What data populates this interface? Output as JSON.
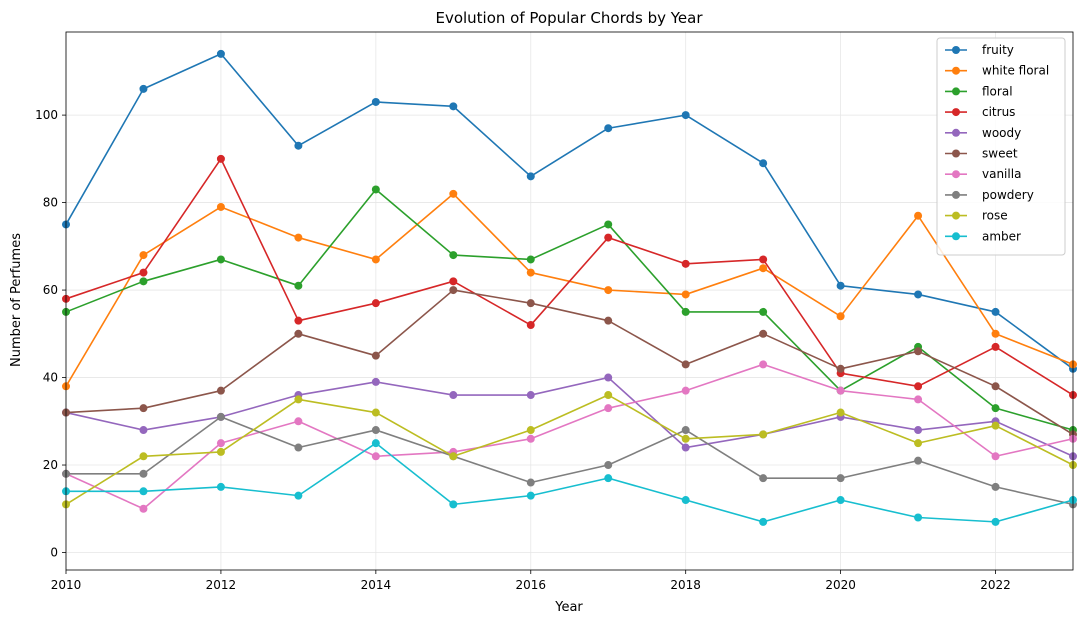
{
  "chart_data": {
    "type": "line",
    "title": "Evolution of Popular Chords by Year",
    "xlabel": "Year",
    "ylabel": "Number of Perfumes",
    "x": [
      2010,
      2011,
      2012,
      2013,
      2014,
      2015,
      2016,
      2017,
      2018,
      2019,
      2020,
      2021,
      2022,
      2023
    ],
    "xlim": [
      2010,
      2023
    ],
    "ylim": [
      -4,
      119
    ],
    "xticks": [
      2010,
      2012,
      2014,
      2016,
      2018,
      2020,
      2022
    ],
    "yticks": [
      0,
      20,
      40,
      60,
      80,
      100
    ],
    "grid": true,
    "legend_position": "top-right",
    "series": [
      {
        "name": "fruity",
        "color": "#1f77b4",
        "values": [
          75,
          106,
          114,
          93,
          103,
          102,
          86,
          97,
          100,
          89,
          61,
          59,
          55,
          42
        ]
      },
      {
        "name": "white floral",
        "color": "#ff7f0e",
        "values": [
          38,
          68,
          79,
          72,
          67,
          82,
          64,
          60,
          59,
          65,
          54,
          77,
          50,
          43
        ]
      },
      {
        "name": "floral",
        "color": "#2ca02c",
        "values": [
          55,
          62,
          67,
          61,
          83,
          68,
          67,
          75,
          55,
          55,
          37,
          47,
          33,
          28
        ]
      },
      {
        "name": "citrus",
        "color": "#d62728",
        "values": [
          58,
          64,
          90,
          53,
          57,
          62,
          52,
          72,
          66,
          67,
          41,
          38,
          47,
          36
        ]
      },
      {
        "name": "woody",
        "color": "#9467bd",
        "values": [
          32,
          28,
          31,
          36,
          39,
          36,
          36,
          40,
          24,
          27,
          31,
          28,
          30,
          22
        ]
      },
      {
        "name": "sweet",
        "color": "#8c564b",
        "values": [
          32,
          33,
          37,
          50,
          45,
          60,
          57,
          53,
          43,
          50,
          42,
          46,
          38,
          27
        ]
      },
      {
        "name": "vanilla",
        "color": "#e377c2",
        "values": [
          18,
          10,
          25,
          30,
          22,
          23,
          26,
          33,
          37,
          43,
          37,
          35,
          22,
          26
        ]
      },
      {
        "name": "powdery",
        "color": "#7f7f7f",
        "values": [
          18,
          18,
          31,
          24,
          28,
          22,
          16,
          20,
          28,
          17,
          17,
          21,
          15,
          11
        ]
      },
      {
        "name": "rose",
        "color": "#bcbd22",
        "values": [
          11,
          22,
          23,
          35,
          32,
          22,
          28,
          36,
          26,
          27,
          32,
          25,
          29,
          20
        ]
      },
      {
        "name": "amber",
        "color": "#17becf",
        "values": [
          14,
          14,
          15,
          13,
          25,
          11,
          13,
          17,
          12,
          7,
          12,
          8,
          7,
          12
        ]
      }
    ]
  }
}
